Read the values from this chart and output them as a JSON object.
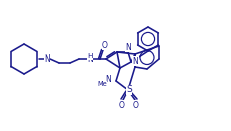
{
  "bg_color": "#ffffff",
  "lc": "#1a1a8c",
  "lw": 1.15,
  "figsize": [
    2.31,
    1.31
  ],
  "dpi": 100,
  "xlim": [
    0,
    231
  ],
  "ylim": [
    0,
    131
  ]
}
